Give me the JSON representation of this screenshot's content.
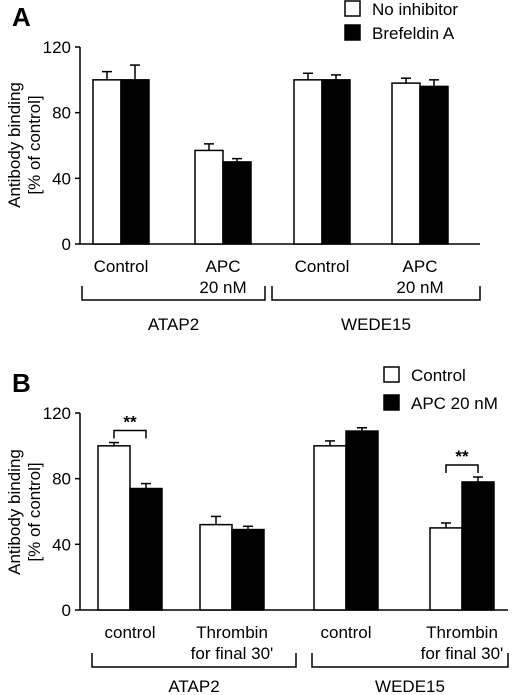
{
  "panels": [
    {
      "label": "A",
      "ylabel_lines": [
        "Antibody binding",
        "[% of control]"
      ]
    },
    {
      "label": "B",
      "ylabel_lines": [
        "Antibody binding",
        "[% of control]"
      ]
    }
  ],
  "chart_data": [
    {
      "type": "bar",
      "panel": "A",
      "ylim": [
        0,
        120
      ],
      "yticks": [
        "0",
        "40",
        "80",
        "120"
      ],
      "ylabel": "Antibody binding [% of control]",
      "categories": [
        [
          "Control"
        ],
        [
          "APC",
          "20 nM"
        ],
        [
          "Control"
        ],
        [
          "APC",
          "20 nM"
        ]
      ],
      "groups": [
        {
          "name": "ATAP2",
          "categories": [
            0,
            1
          ]
        },
        {
          "name": "WEDE15",
          "categories": [
            2,
            3
          ]
        }
      ],
      "legend_position": "top-right",
      "series": [
        {
          "name": "No inhibitor",
          "color": "#ffffff",
          "values": [
            100,
            57,
            100,
            98
          ],
          "errors": [
            5,
            4,
            4,
            3
          ]
        },
        {
          "name": "Brefeldin A",
          "color": "#000000",
          "values": [
            100,
            50,
            100,
            96
          ],
          "errors": [
            9,
            2,
            3,
            4
          ]
        }
      ],
      "significance": []
    },
    {
      "type": "bar",
      "panel": "B",
      "ylim": [
        0,
        120
      ],
      "yticks": [
        "0",
        "40",
        "80",
        "120"
      ],
      "ylabel": "Antibody binding [% of control]",
      "categories": [
        [
          "control"
        ],
        [
          "Thrombin",
          "for final 30'"
        ],
        [
          "control"
        ],
        [
          "Thrombin",
          "for final 30'"
        ]
      ],
      "groups": [
        {
          "name": "ATAP2",
          "categories": [
            0,
            1
          ]
        },
        {
          "name": "WEDE15",
          "categories": [
            2,
            3
          ]
        }
      ],
      "legend_position": "top-right",
      "series": [
        {
          "name": "Control",
          "color": "#ffffff",
          "values": [
            100,
            52,
            100,
            50
          ],
          "errors": [
            2,
            5,
            3,
            3
          ]
        },
        {
          "name": "APC 20 nM",
          "color": "#000000",
          "values": [
            74,
            49,
            109,
            78
          ],
          "errors": [
            3,
            2,
            2,
            3
          ]
        }
      ],
      "significance": [
        {
          "category": 0,
          "label": "**"
        },
        {
          "category": 3,
          "label": "**"
        }
      ]
    }
  ]
}
